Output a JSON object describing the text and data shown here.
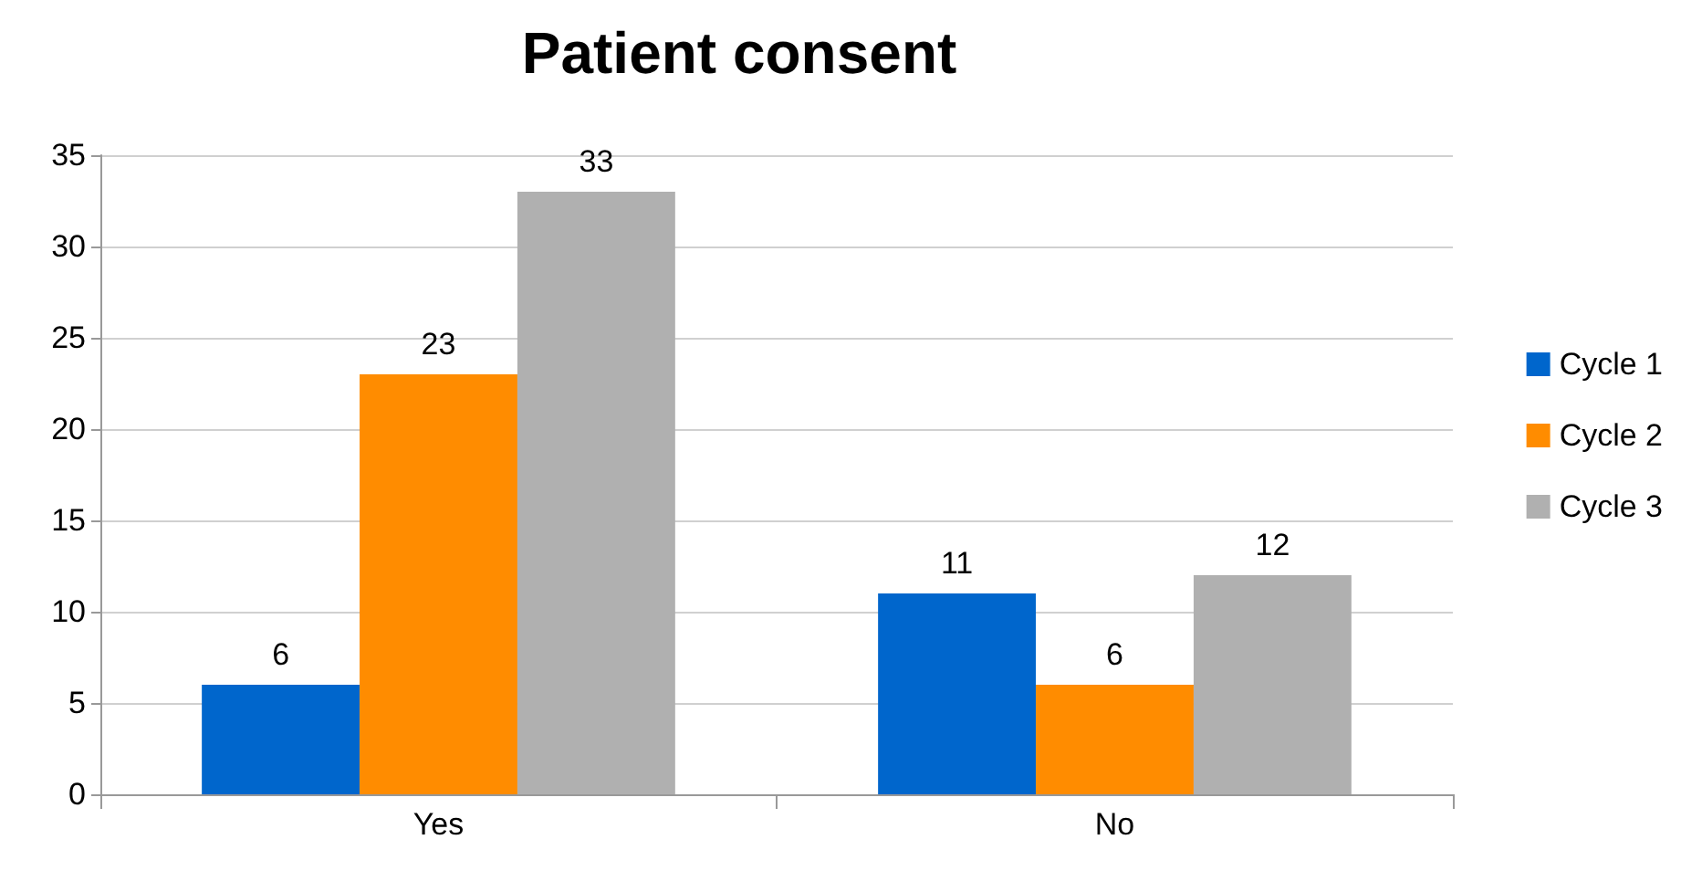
{
  "chart_data": {
    "type": "bar",
    "title": "Patient consent",
    "categories": [
      "Yes",
      "No"
    ],
    "series": [
      {
        "name": "Cycle 1",
        "color": "#0066cc",
        "values": [
          6,
          11
        ]
      },
      {
        "name": "Cycle 2",
        "color": "#ff8c00",
        "values": [
          23,
          6
        ]
      },
      {
        "name": "Cycle 3",
        "color": "#b0b0b0",
        "values": [
          33,
          12
        ]
      }
    ],
    "ylim": [
      0,
      35
    ],
    "yticks": [
      0,
      5,
      10,
      15,
      20,
      25,
      30,
      35
    ],
    "grid": "y",
    "legend": "right",
    "data_labels": true
  }
}
